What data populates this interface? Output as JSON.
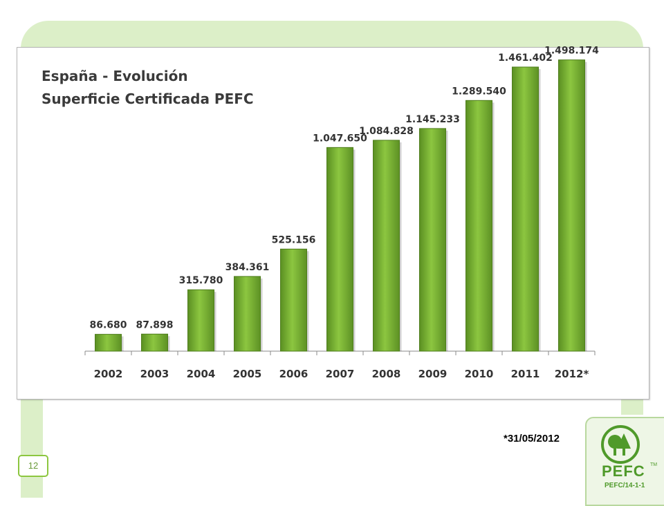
{
  "colors": {
    "bar": "#7fb239",
    "frame": "#dcefc8",
    "accent": "#8cc63f",
    "logo": "#4f9a2a"
  },
  "chart_data": {
    "type": "bar",
    "title_lines": [
      "España - Evolución",
      "Superficie Certificada PEFC"
    ],
    "categories": [
      "2002",
      "2003",
      "2004",
      "2005",
      "2006",
      "2007",
      "2008",
      "2009",
      "2010",
      "2011",
      "2012*"
    ],
    "values": [
      86680,
      87898,
      315780,
      384361,
      525156,
      1047650,
      1084828,
      1145233,
      1289540,
      1461402,
      1498174
    ],
    "data_labels": [
      "86.680",
      "87.898",
      "315.780",
      "384.361",
      "525.156",
      "1.047.650",
      "1.084.828",
      "1.145.233",
      "1.289.540",
      "1.461.402",
      "1.498.174"
    ],
    "ylim": [
      0,
      1600000
    ],
    "grid": false,
    "legend": "none"
  },
  "footnote": "*31/05/2012",
  "page_number": "12",
  "logo": {
    "name": "pefc-logo-icon",
    "word": "PEFC",
    "tm": "TM",
    "code": "PEFC/14-1-1"
  }
}
